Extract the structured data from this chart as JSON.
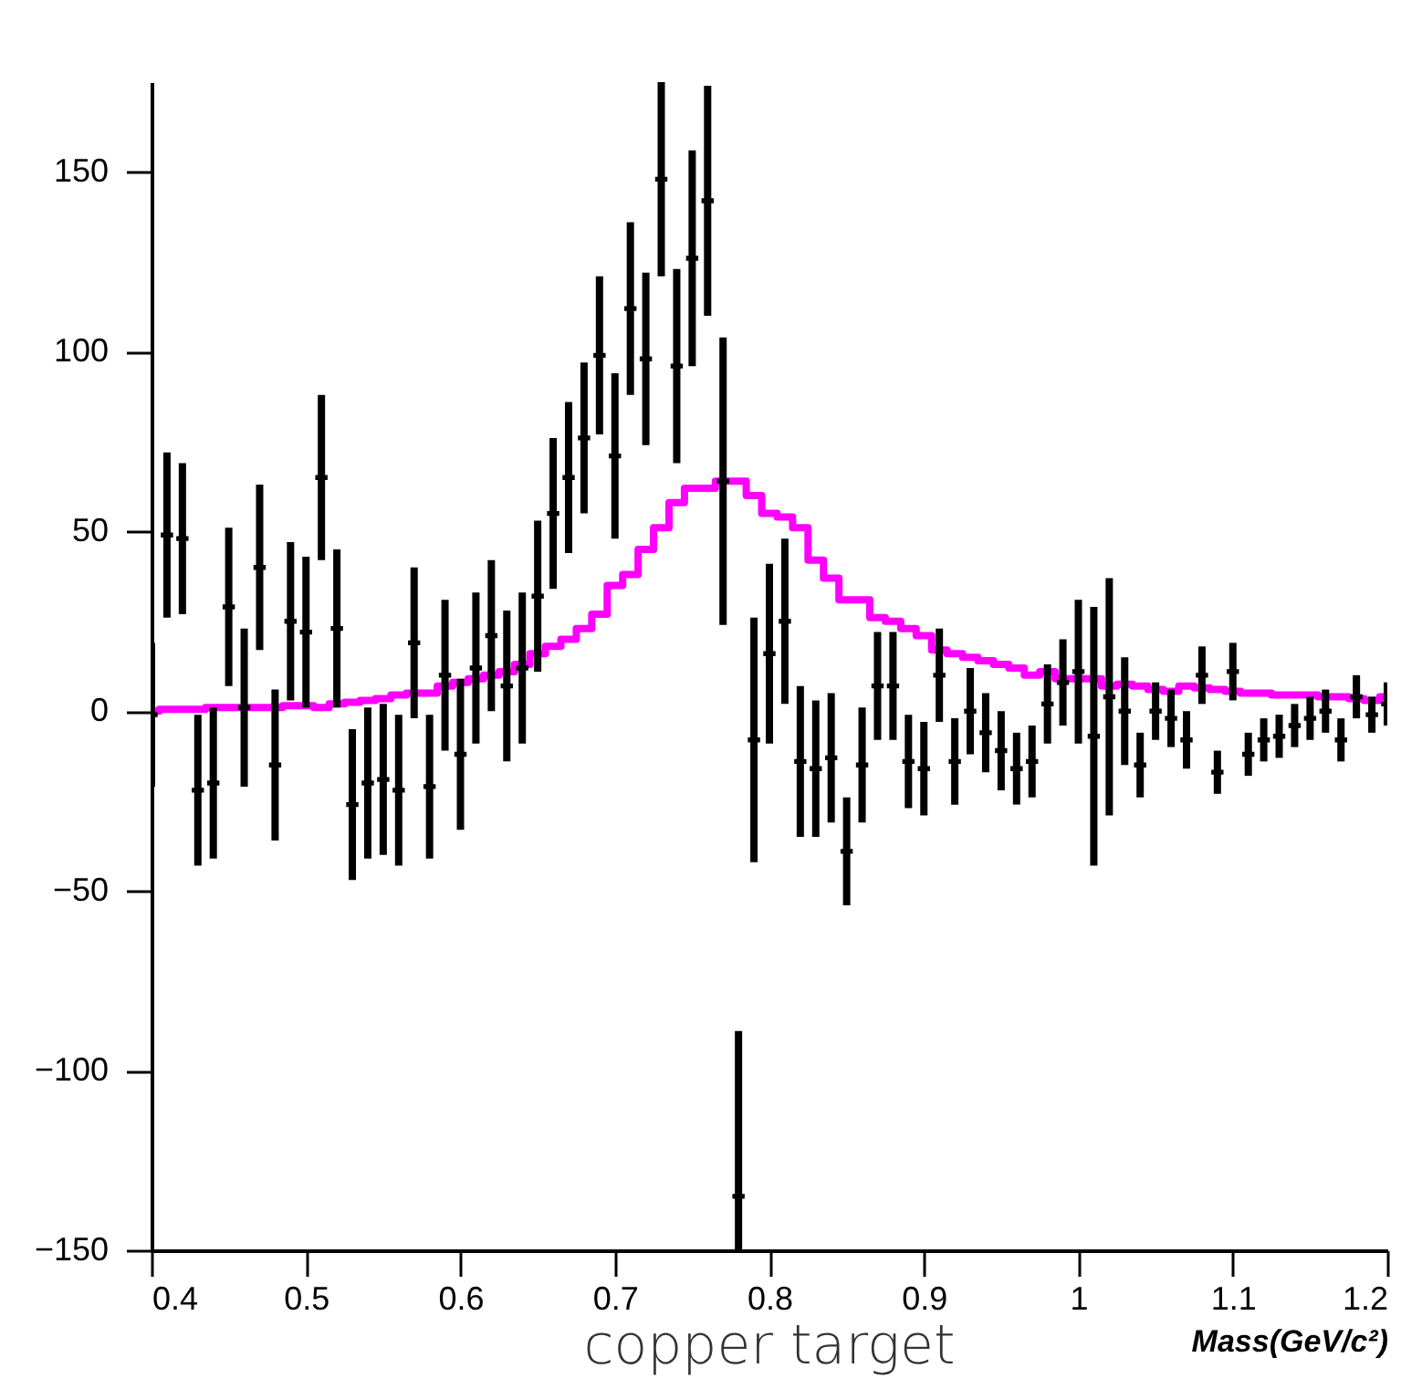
{
  "chart_data": {
    "type": "scatter",
    "title": "copper target",
    "xlabel": "Mass(GeV/c²)",
    "x": [
      0.4,
      0.41,
      0.42,
      0.43,
      0.44,
      0.45,
      0.46,
      0.47,
      0.48,
      0.49,
      0.5,
      0.51,
      0.52,
      0.53,
      0.54,
      0.55,
      0.56,
      0.57,
      0.58,
      0.59,
      0.6,
      0.61,
      0.62,
      0.63,
      0.64,
      0.65,
      0.66,
      0.67,
      0.68,
      0.69,
      0.7,
      0.71,
      0.72,
      0.73,
      0.74,
      0.75,
      0.76,
      0.77,
      0.78,
      0.79,
      0.8,
      0.81,
      0.82,
      0.83,
      0.84,
      0.85,
      0.86,
      0.87,
      0.88,
      0.89,
      0.9,
      0.91,
      0.92,
      0.93,
      0.94,
      0.95,
      0.96,
      0.97,
      0.98,
      0.99,
      1.0,
      1.01,
      1.02,
      1.03,
      1.04,
      1.05,
      1.06,
      1.07,
      1.08,
      1.09,
      1.1,
      1.11,
      1.12,
      1.13,
      1.14,
      1.15,
      1.16,
      1.17,
      1.18,
      1.19,
      1.2
    ],
    "series": [
      {
        "type": "step",
        "color": "#ff00ff",
        "values": [
          0,
          0.5,
          0.5,
          0.5,
          1,
          1,
          1,
          1,
          1,
          1.5,
          1.5,
          1,
          2,
          2.5,
          3,
          3.5,
          4.5,
          5,
          5,
          7,
          8,
          9,
          10,
          11,
          13,
          16,
          18,
          20,
          23,
          27,
          35,
          38,
          45,
          51,
          58,
          62,
          62,
          64,
          64,
          60,
          55,
          54,
          51,
          42,
          37,
          31,
          31,
          26,
          25,
          23,
          21,
          17,
          16,
          15,
          14,
          13,
          12,
          10,
          11,
          9,
          9,
          9,
          7,
          7.5,
          7,
          6,
          5.5,
          7,
          6.5,
          6,
          5.5,
          5,
          5,
          4.5,
          4.5,
          4.5,
          4,
          4,
          3.5,
          3,
          4
        ]
      },
      {
        "type": "scatter",
        "color": "#000000",
        "marker": "cross",
        "values": [
          -1,
          49,
          48,
          -22,
          -20,
          29,
          1,
          40,
          -15,
          25,
          22,
          65,
          23,
          -26,
          -20,
          -19,
          -22,
          19,
          -21,
          10,
          -12,
          12,
          21,
          7,
          12,
          32,
          55,
          65,
          76,
          99,
          71,
          112,
          98,
          148,
          96,
          126,
          142,
          64,
          -135,
          -8,
          16,
          25,
          -14,
          -16,
          -13,
          -39,
          -15,
          7,
          7,
          -14,
          -16,
          10,
          -14,
          0,
          -6,
          -11,
          -16,
          -14,
          2,
          8,
          11,
          -7,
          4,
          0,
          -15,
          0,
          -2,
          -8,
          10,
          -17,
          11,
          -12,
          -8,
          -7,
          -4,
          -2,
          0,
          -8,
          4,
          -1,
          2
        ],
        "errors": [
          20,
          23,
          21,
          21,
          21,
          22,
          22,
          23,
          21,
          22,
          21,
          23,
          22,
          21,
          21,
          21,
          21,
          21,
          20,
          21,
          21,
          21,
          21,
          21,
          21,
          21,
          21,
          21,
          21,
          22,
          23,
          24,
          24,
          27,
          27,
          30,
          32,
          40,
          [
            -150,
            -89
          ],
          34,
          25,
          23,
          21,
          19,
          18,
          15,
          16,
          15,
          15,
          13,
          13,
          13,
          12,
          12,
          11,
          11,
          10,
          10,
          11,
          12,
          20,
          36,
          33,
          15,
          9,
          8,
          8,
          8,
          8,
          6,
          8,
          6,
          6,
          6,
          6,
          6,
          6,
          6,
          6,
          5,
          6
        ]
      }
    ],
    "xlim": [
      0.4,
      1.2
    ],
    "xticks": [
      0.4,
      0.5,
      0.6,
      0.7,
      0.8,
      0.9,
      1,
      1.1,
      1.2
    ],
    "ylim": [
      -150,
      175
    ],
    "yticks": [
      -150,
      -100,
      -50,
      0,
      50,
      100,
      150
    ],
    "tick_labels": true
  }
}
